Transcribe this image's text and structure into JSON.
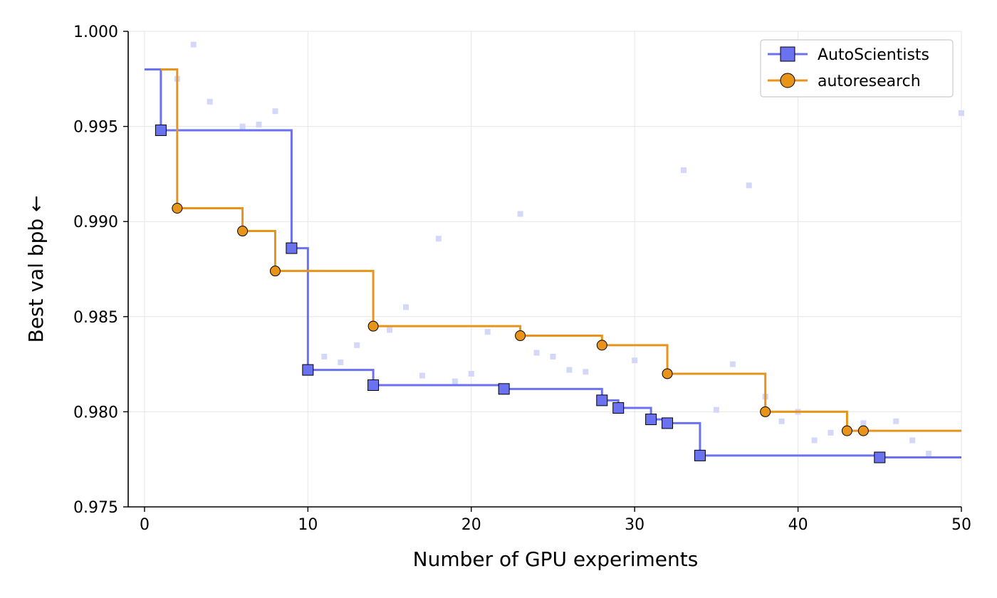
{
  "chart_data": {
    "type": "line",
    "xlabel": "Number of GPU experiments",
    "ylabel": "Best val bpb ←",
    "xlim": [
      -1,
      50
    ],
    "ylim": [
      0.975,
      1.0
    ],
    "xticks": [
      0,
      10,
      20,
      30,
      40,
      50
    ],
    "yticks": [
      0.975,
      0.98,
      0.985,
      0.99,
      0.995,
      1.0
    ],
    "xtick_labels": [
      "0",
      "10",
      "20",
      "30",
      "40",
      "50"
    ],
    "ytick_labels": [
      "0.975",
      "0.980",
      "0.985",
      "0.990",
      "0.995",
      "1.000"
    ],
    "grid": true,
    "legend_position": "top-right",
    "series": [
      {
        "name": "AutoScientists",
        "style": "step",
        "color": "#6b72f0",
        "marker": "square",
        "x_end": 50,
        "points": [
          {
            "x": 0,
            "y": 0.998
          },
          {
            "x": 1,
            "y": 0.9948
          },
          {
            "x": 9,
            "y": 0.9886
          },
          {
            "x": 10,
            "y": 0.9822
          },
          {
            "x": 14,
            "y": 0.9814
          },
          {
            "x": 22,
            "y": 0.9812
          },
          {
            "x": 28,
            "y": 0.9806
          },
          {
            "x": 29,
            "y": 0.9802
          },
          {
            "x": 31,
            "y": 0.9796
          },
          {
            "x": 32,
            "y": 0.9794
          },
          {
            "x": 34,
            "y": 0.9777
          },
          {
            "x": 45,
            "y": 0.9776
          }
        ],
        "marker_points": [
          {
            "x": 1,
            "y": 0.9948
          },
          {
            "x": 9,
            "y": 0.9886
          },
          {
            "x": 10,
            "y": 0.9822
          },
          {
            "x": 14,
            "y": 0.9814
          },
          {
            "x": 22,
            "y": 0.9812
          },
          {
            "x": 28,
            "y": 0.9806
          },
          {
            "x": 29,
            "y": 0.9802
          },
          {
            "x": 31,
            "y": 0.9796
          },
          {
            "x": 32,
            "y": 0.9794
          },
          {
            "x": 34,
            "y": 0.9777
          },
          {
            "x": 45,
            "y": 0.9776
          }
        ]
      },
      {
        "name": "autoresearch",
        "style": "step",
        "color": "#e8941a",
        "marker": "circle",
        "x_end": 50,
        "points": [
          {
            "x": 1,
            "y": 0.998
          },
          {
            "x": 2,
            "y": 0.9907
          },
          {
            "x": 6,
            "y": 0.9895
          },
          {
            "x": 8,
            "y": 0.9874
          },
          {
            "x": 14,
            "y": 0.9845
          },
          {
            "x": 23,
            "y": 0.984
          },
          {
            "x": 28,
            "y": 0.9835
          },
          {
            "x": 32,
            "y": 0.982
          },
          {
            "x": 38,
            "y": 0.98
          },
          {
            "x": 43,
            "y": 0.979
          },
          {
            "x": 44,
            "y": 0.979
          }
        ],
        "marker_points": [
          {
            "x": 2,
            "y": 0.9907
          },
          {
            "x": 6,
            "y": 0.9895
          },
          {
            "x": 8,
            "y": 0.9874
          },
          {
            "x": 14,
            "y": 0.9845
          },
          {
            "x": 23,
            "y": 0.984
          },
          {
            "x": 28,
            "y": 0.9835
          },
          {
            "x": 32,
            "y": 0.982
          },
          {
            "x": 38,
            "y": 0.98
          },
          {
            "x": 43,
            "y": 0.979
          },
          {
            "x": 44,
            "y": 0.979
          }
        ]
      }
    ],
    "individual_trials": {
      "color": "#d4d8f8",
      "marker": "small-square",
      "points": [
        {
          "x": 2,
          "y": 0.9975
        },
        {
          "x": 3,
          "y": 0.9993
        },
        {
          "x": 4,
          "y": 0.9963
        },
        {
          "x": 6,
          "y": 0.995
        },
        {
          "x": 7,
          "y": 0.9951
        },
        {
          "x": 8,
          "y": 0.9958
        },
        {
          "x": 11,
          "y": 0.9829
        },
        {
          "x": 12,
          "y": 0.9826
        },
        {
          "x": 13,
          "y": 0.9835
        },
        {
          "x": 15,
          "y": 0.9843
        },
        {
          "x": 16,
          "y": 0.9855
        },
        {
          "x": 17,
          "y": 0.9819
        },
        {
          "x": 18,
          "y": 0.9891
        },
        {
          "x": 19,
          "y": 0.9816
        },
        {
          "x": 20,
          "y": 0.982
        },
        {
          "x": 21,
          "y": 0.9842
        },
        {
          "x": 23,
          "y": 0.9904
        },
        {
          "x": 24,
          "y": 0.9831
        },
        {
          "x": 25,
          "y": 0.9829
        },
        {
          "x": 26,
          "y": 0.9822
        },
        {
          "x": 27,
          "y": 0.9821
        },
        {
          "x": 30,
          "y": 0.9827
        },
        {
          "x": 33,
          "y": 0.9927
        },
        {
          "x": 35,
          "y": 0.9801
        },
        {
          "x": 36,
          "y": 0.9825
        },
        {
          "x": 37,
          "y": 0.9919
        },
        {
          "x": 38,
          "y": 0.9808
        },
        {
          "x": 39,
          "y": 0.9795
        },
        {
          "x": 40,
          "y": 0.98
        },
        {
          "x": 41,
          "y": 0.9785
        },
        {
          "x": 42,
          "y": 0.9789
        },
        {
          "x": 44,
          "y": 0.9794
        },
        {
          "x": 46,
          "y": 0.9795
        },
        {
          "x": 47,
          "y": 0.9785
        },
        {
          "x": 48,
          "y": 0.9778
        },
        {
          "x": 50,
          "y": 0.9957
        }
      ]
    }
  }
}
